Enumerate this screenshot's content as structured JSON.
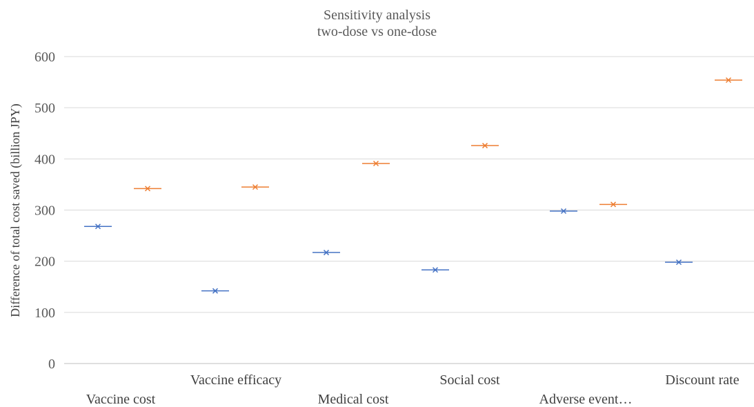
{
  "chart_data": {
    "type": "scatter",
    "title_lines": [
      "Sensitivity analysis",
      "two-dose vs one-dose"
    ],
    "xlabel": "",
    "ylabel": "Difference of total cost saved (billion JPY)",
    "ylim": [
      0,
      600
    ],
    "yticks": [
      0,
      100,
      200,
      300,
      400,
      500,
      600
    ],
    "categories": [
      "Vaccine cost",
      "Vaccine efficacy",
      "Medical cost",
      "Social cost",
      "Adverse event…",
      "Discount rate"
    ],
    "grid": true,
    "legend": "none",
    "marker": "x-with-horizontal-bar",
    "series": [
      {
        "color": "#4472C4",
        "values": [
          268,
          142,
          217,
          183,
          298,
          198
        ]
      },
      {
        "color": "#ED7D31",
        "values": [
          342,
          345,
          391,
          426,
          311,
          554
        ]
      }
    ]
  }
}
